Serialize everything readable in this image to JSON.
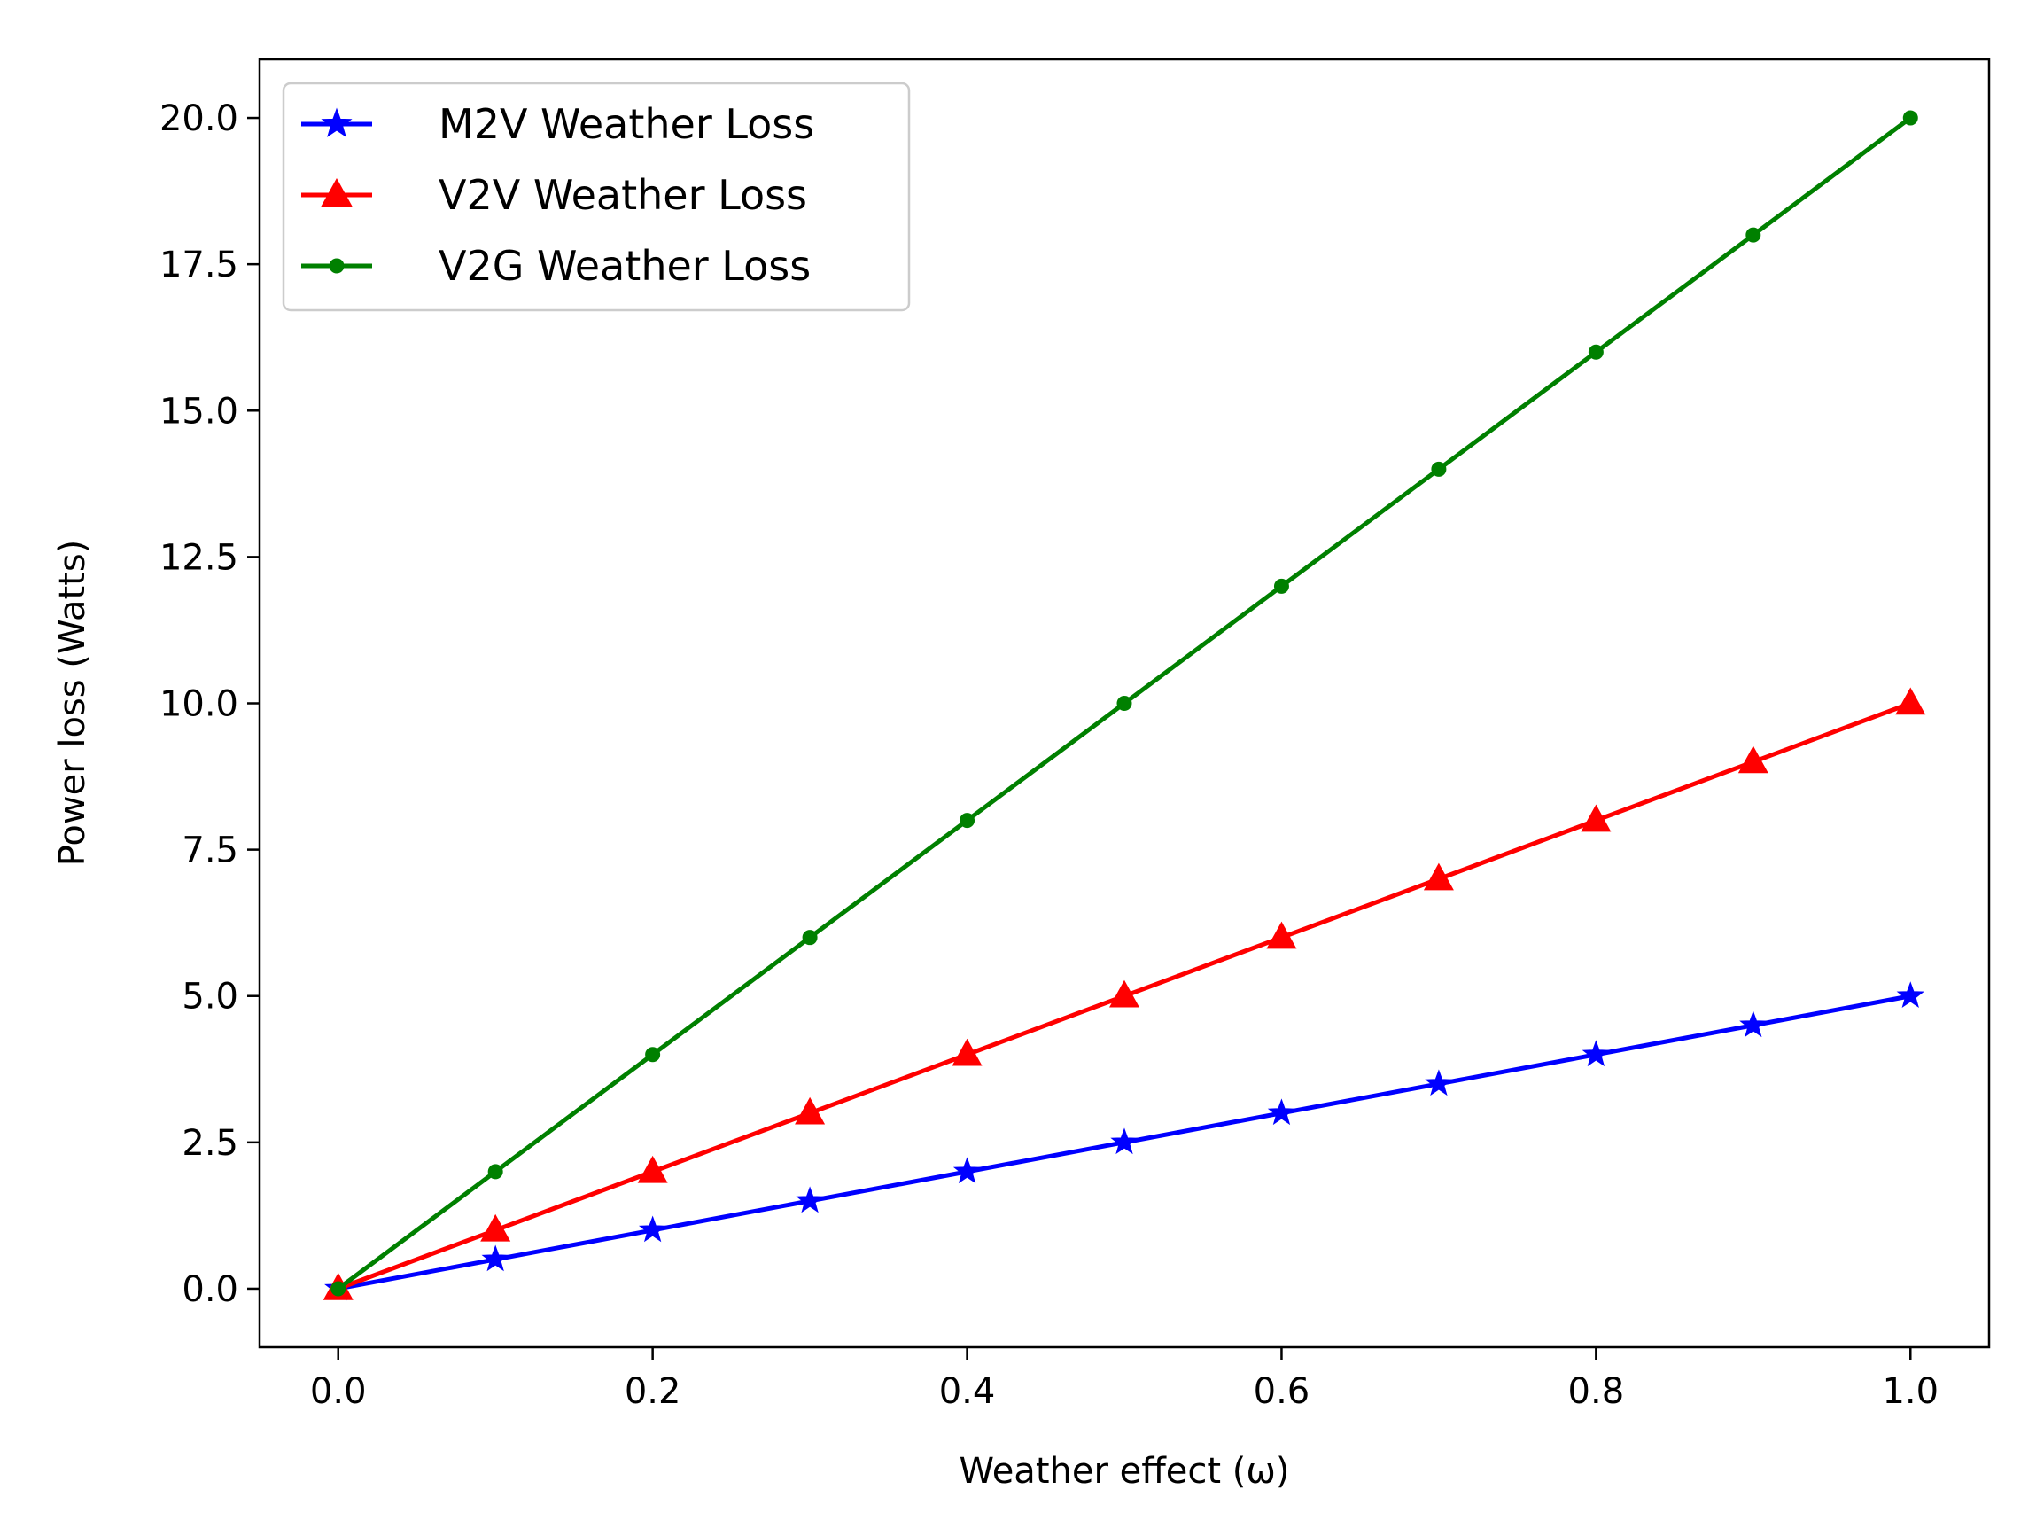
{
  "chart_data": {
    "type": "line",
    "title": "",
    "xlabel": "Weather effect (ω)",
    "ylabel": "Power loss (Watts)",
    "xlim": [
      -0.05,
      1.05
    ],
    "ylim": [
      -1.0,
      21.0
    ],
    "xticks": [
      0.0,
      0.2,
      0.4,
      0.6,
      0.8,
      1.0
    ],
    "xtick_labels": [
      "0.0",
      "0.2",
      "0.4",
      "0.6",
      "0.8",
      "1.0"
    ],
    "yticks": [
      0.0,
      2.5,
      5.0,
      7.5,
      10.0,
      12.5,
      15.0,
      17.5,
      20.0
    ],
    "ytick_labels": [
      "0.0",
      "2.5",
      "5.0",
      "7.5",
      "10.0",
      "12.5",
      "15.0",
      "17.5",
      "20.0"
    ],
    "grid": false,
    "legend_position": "upper-left",
    "x": [
      0.0,
      0.1,
      0.2,
      0.3,
      0.4,
      0.5,
      0.6,
      0.7,
      0.8,
      0.9,
      1.0
    ],
    "series": [
      {
        "name": "M2V Weather Loss",
        "color": "#0000ff",
        "marker": "star",
        "values": [
          0.0,
          0.5,
          1.0,
          1.5,
          2.0,
          2.5,
          3.0,
          3.5,
          4.0,
          4.5,
          5.0
        ]
      },
      {
        "name": "V2V Weather Loss",
        "color": "#ff0000",
        "marker": "triangle",
        "values": [
          0.0,
          1.0,
          2.0,
          3.0,
          4.0,
          5.0,
          6.0,
          7.0,
          8.0,
          9.0,
          10.0
        ]
      },
      {
        "name": "V2G Weather Loss",
        "color": "#008000",
        "marker": "dot",
        "values": [
          0.0,
          2.0,
          4.0,
          6.0,
          8.0,
          10.0,
          12.0,
          14.0,
          16.0,
          18.0,
          20.0
        ]
      }
    ]
  }
}
